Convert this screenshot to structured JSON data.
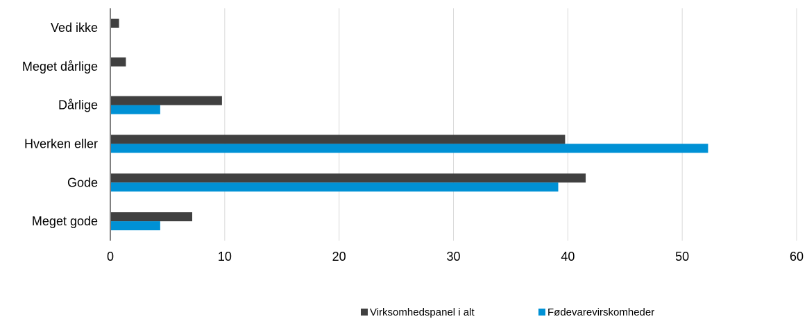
{
  "chart_data": {
    "type": "bar",
    "orientation": "horizontal",
    "categories": [
      "Ved ikke",
      "Meget dårlige",
      "Dårlige",
      "Hverken eller",
      "Gode",
      "Meget gode"
    ],
    "series": [
      {
        "name": "Virksomhedspanel i alt",
        "color": "#404040",
        "values": [
          0.7,
          1.3,
          9.7,
          39.7,
          41.5,
          7.1
        ]
      },
      {
        "name": "Fødevarevirskomheder",
        "color": "#0091d5",
        "values": [
          0,
          0,
          4.3,
          52.2,
          39.1,
          4.3
        ]
      }
    ],
    "x_ticks": [
      "0",
      "10",
      "20",
      "30",
      "40",
      "50",
      "60"
    ],
    "xlim": [
      0,
      60
    ],
    "grid": "vertical",
    "legend": "bottom",
    "title": "",
    "xlabel": "",
    "ylabel": ""
  }
}
